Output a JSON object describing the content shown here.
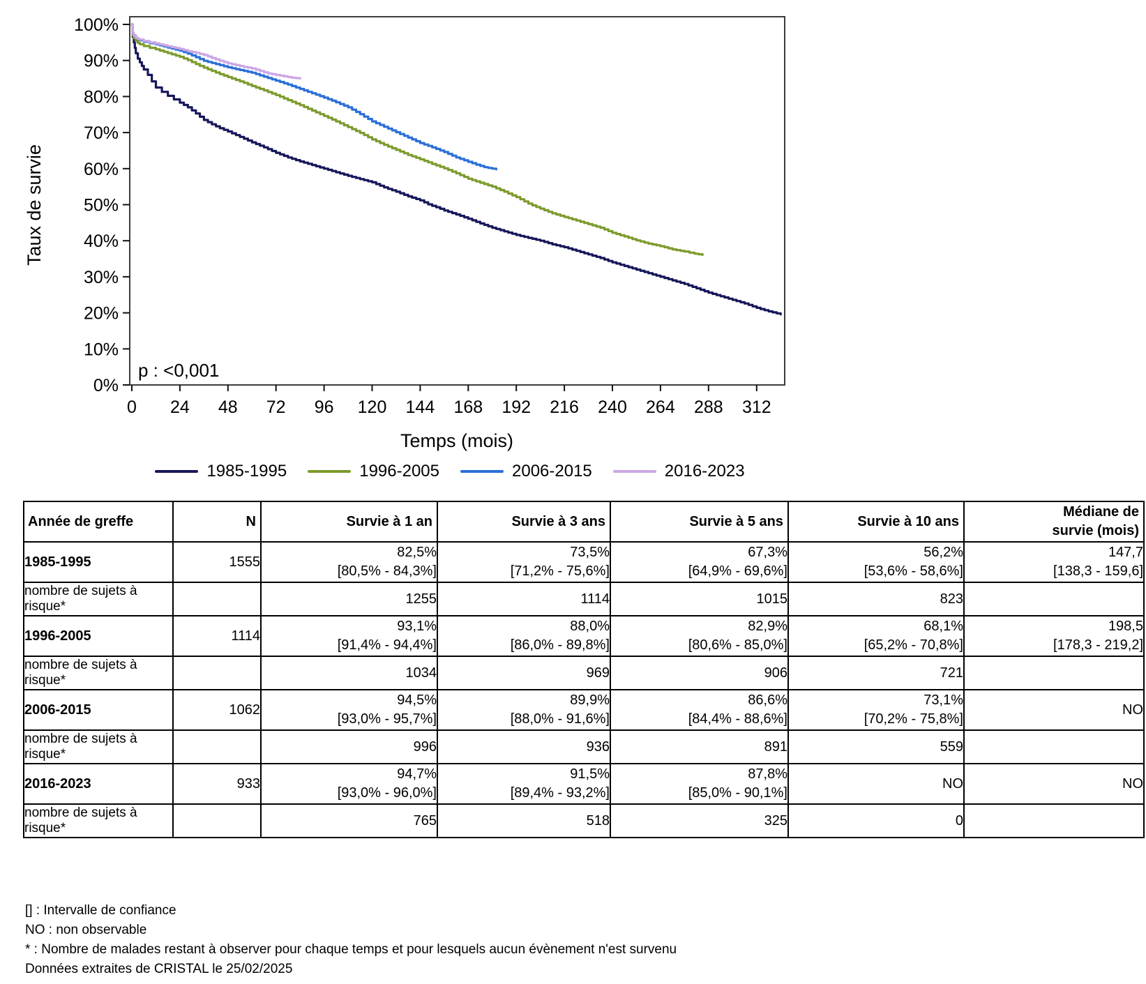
{
  "chart_data": {
    "type": "line",
    "title": "",
    "xlabel": "Temps (mois)",
    "ylabel": "Taux de survie",
    "xlim": [
      0,
      326
    ],
    "ylim": [
      0,
      100
    ],
    "x_ticks": [
      0,
      24,
      48,
      72,
      96,
      120,
      144,
      168,
      192,
      216,
      240,
      264,
      288,
      312
    ],
    "y_ticks": [
      0,
      10,
      20,
      30,
      40,
      50,
      60,
      70,
      80,
      90,
      100
    ],
    "y_tick_suffix": "%",
    "grid": false,
    "legend_position": "bottom",
    "annotation": "p : <0,001",
    "series": [
      {
        "name": "1985-1995",
        "color": "#17175A",
        "points": [
          [
            0,
            100
          ],
          [
            0.5,
            96.5
          ],
          [
            1,
            95
          ],
          [
            1.5,
            93.5
          ],
          [
            2,
            92
          ],
          [
            3,
            90.5
          ],
          [
            4,
            89.5
          ],
          [
            5,
            88.5
          ],
          [
            6,
            87.5
          ],
          [
            8,
            86
          ],
          [
            10,
            84.2
          ],
          [
            12,
            82.5
          ],
          [
            15,
            81.3
          ],
          [
            18,
            80.2
          ],
          [
            21,
            79.2
          ],
          [
            24,
            78.3
          ],
          [
            28,
            77
          ],
          [
            32,
            75.3
          ],
          [
            36,
            73.5
          ],
          [
            40,
            72.3
          ],
          [
            44,
            71.2
          ],
          [
            48,
            70.3
          ],
          [
            52,
            69.3
          ],
          [
            56,
            68.3
          ],
          [
            60,
            67.3
          ],
          [
            66,
            65.9
          ],
          [
            72,
            64.4
          ],
          [
            78,
            63.1
          ],
          [
            84,
            62
          ],
          [
            90,
            61
          ],
          [
            96,
            60
          ],
          [
            102,
            59
          ],
          [
            108,
            58
          ],
          [
            114,
            57.1
          ],
          [
            120,
            56.2
          ],
          [
            126,
            54.8
          ],
          [
            132,
            53.6
          ],
          [
            138,
            52.3
          ],
          [
            144,
            51.2
          ],
          [
            148,
            50.1
          ],
          [
            152,
            49.3
          ],
          [
            156,
            48.4
          ],
          [
            162,
            47.3
          ],
          [
            168,
            46.1
          ],
          [
            174,
            44.8
          ],
          [
            180,
            43.6
          ],
          [
            186,
            42.6
          ],
          [
            192,
            41.6
          ],
          [
            198,
            40.8
          ],
          [
            204,
            40
          ],
          [
            210,
            39
          ],
          [
            216,
            38.2
          ],
          [
            222,
            37.2
          ],
          [
            228,
            36.2
          ],
          [
            234,
            35.2
          ],
          [
            240,
            34
          ],
          [
            246,
            33
          ],
          [
            252,
            32
          ],
          [
            258,
            31
          ],
          [
            264,
            30
          ],
          [
            270,
            29
          ],
          [
            276,
            28
          ],
          [
            282,
            26.8
          ],
          [
            288,
            25.6
          ],
          [
            294,
            24.6
          ],
          [
            300,
            23.6
          ],
          [
            306,
            22.6
          ],
          [
            312,
            21.4
          ],
          [
            318,
            20.4
          ],
          [
            324,
            19.6
          ]
        ]
      },
      {
        "name": "1996-2005",
        "color": "#7D9B2D",
        "points": [
          [
            0,
            100
          ],
          [
            0.5,
            97
          ],
          [
            1,
            96.2
          ],
          [
            2,
            95.4
          ],
          [
            3,
            94.9
          ],
          [
            4,
            94.5
          ],
          [
            6,
            94
          ],
          [
            9,
            93.5
          ],
          [
            12,
            93.1
          ],
          [
            16,
            92.4
          ],
          [
            20,
            91.7
          ],
          [
            24,
            91
          ],
          [
            28,
            90.1
          ],
          [
            32,
            89
          ],
          [
            36,
            88
          ],
          [
            40,
            87.1
          ],
          [
            44,
            86.2
          ],
          [
            48,
            85.4
          ],
          [
            52,
            84.6
          ],
          [
            56,
            83.8
          ],
          [
            60,
            82.9
          ],
          [
            66,
            81.7
          ],
          [
            72,
            80.4
          ],
          [
            78,
            79
          ],
          [
            84,
            77.6
          ],
          [
            90,
            76.1
          ],
          [
            96,
            74.6
          ],
          [
            102,
            73.1
          ],
          [
            108,
            71.5
          ],
          [
            114,
            69.9
          ],
          [
            120,
            68.1
          ],
          [
            126,
            66.6
          ],
          [
            132,
            65.2
          ],
          [
            138,
            63.8
          ],
          [
            144,
            62.6
          ],
          [
            150,
            61.3
          ],
          [
            156,
            60.1
          ],
          [
            162,
            58.7
          ],
          [
            168,
            57.2
          ],
          [
            174,
            56.1
          ],
          [
            180,
            55
          ],
          [
            186,
            53.6
          ],
          [
            192,
            52.1
          ],
          [
            198,
            50.3
          ],
          [
            204,
            48.9
          ],
          [
            210,
            47.6
          ],
          [
            216,
            46.6
          ],
          [
            222,
            45.6
          ],
          [
            228,
            44.6
          ],
          [
            234,
            43.6
          ],
          [
            240,
            42.2
          ],
          [
            246,
            41.2
          ],
          [
            252,
            40.1
          ],
          [
            258,
            39.2
          ],
          [
            264,
            38.5
          ],
          [
            270,
            37.6
          ],
          [
            276,
            37
          ],
          [
            281,
            36.4
          ],
          [
            285,
            36.1
          ]
        ]
      },
      {
        "name": "2006-2015",
        "color": "#2B6FD6",
        "points": [
          [
            0,
            100
          ],
          [
            0.5,
            97.6
          ],
          [
            1,
            96.9
          ],
          [
            2,
            96.3
          ],
          [
            3,
            95.9
          ],
          [
            4,
            95.6
          ],
          [
            6,
            95.2
          ],
          [
            9,
            94.8
          ],
          [
            12,
            94.5
          ],
          [
            16,
            93.9
          ],
          [
            20,
            93.3
          ],
          [
            24,
            92.7
          ],
          [
            28,
            91.9
          ],
          [
            32,
            90.9
          ],
          [
            36,
            89.9
          ],
          [
            40,
            89.3
          ],
          [
            44,
            88.7
          ],
          [
            48,
            88.1
          ],
          [
            52,
            87.6
          ],
          [
            56,
            87.1
          ],
          [
            60,
            86.6
          ],
          [
            66,
            85.5
          ],
          [
            72,
            84.4
          ],
          [
            78,
            83.3
          ],
          [
            84,
            82.1
          ],
          [
            90,
            80.9
          ],
          [
            96,
            79.7
          ],
          [
            102,
            78.4
          ],
          [
            108,
            77
          ],
          [
            114,
            75.1
          ],
          [
            120,
            73.1
          ],
          [
            126,
            71.6
          ],
          [
            132,
            70.1
          ],
          [
            138,
            68.6
          ],
          [
            144,
            67.1
          ],
          [
            150,
            65.9
          ],
          [
            156,
            64.6
          ],
          [
            162,
            63.1
          ],
          [
            168,
            61.9
          ],
          [
            172,
            61.1
          ],
          [
            176,
            60.4
          ],
          [
            180,
            60
          ],
          [
            182,
            59.8
          ]
        ]
      },
      {
        "name": "2016-2023",
        "color": "#CBA7E4",
        "points": [
          [
            0,
            100
          ],
          [
            0.5,
            97.6
          ],
          [
            1,
            96.8
          ],
          [
            2,
            96.3
          ],
          [
            3,
            96
          ],
          [
            4,
            95.8
          ],
          [
            6,
            95.4
          ],
          [
            9,
            95
          ],
          [
            12,
            94.7
          ],
          [
            16,
            94.2
          ],
          [
            20,
            93.7
          ],
          [
            24,
            93.2
          ],
          [
            28,
            92.6
          ],
          [
            32,
            92.1
          ],
          [
            36,
            91.5
          ],
          [
            40,
            90.7
          ],
          [
            44,
            89.9
          ],
          [
            48,
            89.2
          ],
          [
            52,
            88.7
          ],
          [
            56,
            88.2
          ],
          [
            60,
            87.8
          ],
          [
            64,
            87.1
          ],
          [
            68,
            86.4
          ],
          [
            72,
            86
          ],
          [
            76,
            85.6
          ],
          [
            80,
            85.2
          ],
          [
            84,
            85
          ]
        ]
      }
    ]
  },
  "table": {
    "headers": [
      "Année de greffe",
      "N",
      "Survie à 1 an",
      "Survie à 3 ans",
      "Survie à 5 ans",
      "Survie à 10 ans"
    ],
    "median_header": {
      "line1": "Médiane de",
      "line2": "survie (mois)"
    },
    "risk_label": "nombre de sujets à risque*",
    "groups": [
      {
        "label": "1985-1995",
        "n": "1555",
        "surv": [
          {
            "v": "82,5%",
            "ci": "[80,5% - 84,3%]"
          },
          {
            "v": "73,5%",
            "ci": "[71,2% - 75,6%]"
          },
          {
            "v": "67,3%",
            "ci": "[64,9% - 69,6%]"
          },
          {
            "v": "56,2%",
            "ci": "[53,6% - 58,6%]"
          }
        ],
        "median": {
          "v": "147,7",
          "ci": "[138,3 - 159,6]"
        },
        "risk": [
          "1255",
          "1114",
          "1015",
          "823"
        ]
      },
      {
        "label": "1996-2005",
        "n": "1114",
        "surv": [
          {
            "v": "93,1%",
            "ci": "[91,4% - 94,4%]"
          },
          {
            "v": "88,0%",
            "ci": "[86,0% - 89,8%]"
          },
          {
            "v": "82,9%",
            "ci": "[80,6% - 85,0%]"
          },
          {
            "v": "68,1%",
            "ci": "[65,2% - 70,8%]"
          }
        ],
        "median": {
          "v": "198,5",
          "ci": "[178,3 - 219,2]"
        },
        "risk": [
          "1034",
          "969",
          "906",
          "721"
        ]
      },
      {
        "label": "2006-2015",
        "n": "1062",
        "surv": [
          {
            "v": "94,5%",
            "ci": "[93,0% - 95,7%]"
          },
          {
            "v": "89,9%",
            "ci": "[88,0% - 91,6%]"
          },
          {
            "v": "86,6%",
            "ci": "[84,4% - 88,6%]"
          },
          {
            "v": "73,1%",
            "ci": "[70,2% - 75,8%]"
          }
        ],
        "median": {
          "v": "NO"
        },
        "risk": [
          "996",
          "936",
          "891",
          "559"
        ]
      },
      {
        "label": "2016-2023",
        "n": "933",
        "surv": [
          {
            "v": "94,7%",
            "ci": "[93,0% - 96,0%]"
          },
          {
            "v": "91,5%",
            "ci": "[89,4% - 93,2%]"
          },
          {
            "v": "87,8%",
            "ci": "[85,0% - 90,1%]"
          },
          {
            "v": "NO"
          }
        ],
        "median": {
          "v": "NO"
        },
        "risk": [
          "765",
          "518",
          "325",
          "0"
        ]
      }
    ]
  },
  "footnotes": [
    "[] : Intervalle de confiance",
    "NO : non observable",
    "* : Nombre de malades restant à observer pour chaque temps et pour lesquels aucun évènement n'est survenu",
    "Données extraites de CRISTAL le 25/02/2025"
  ]
}
